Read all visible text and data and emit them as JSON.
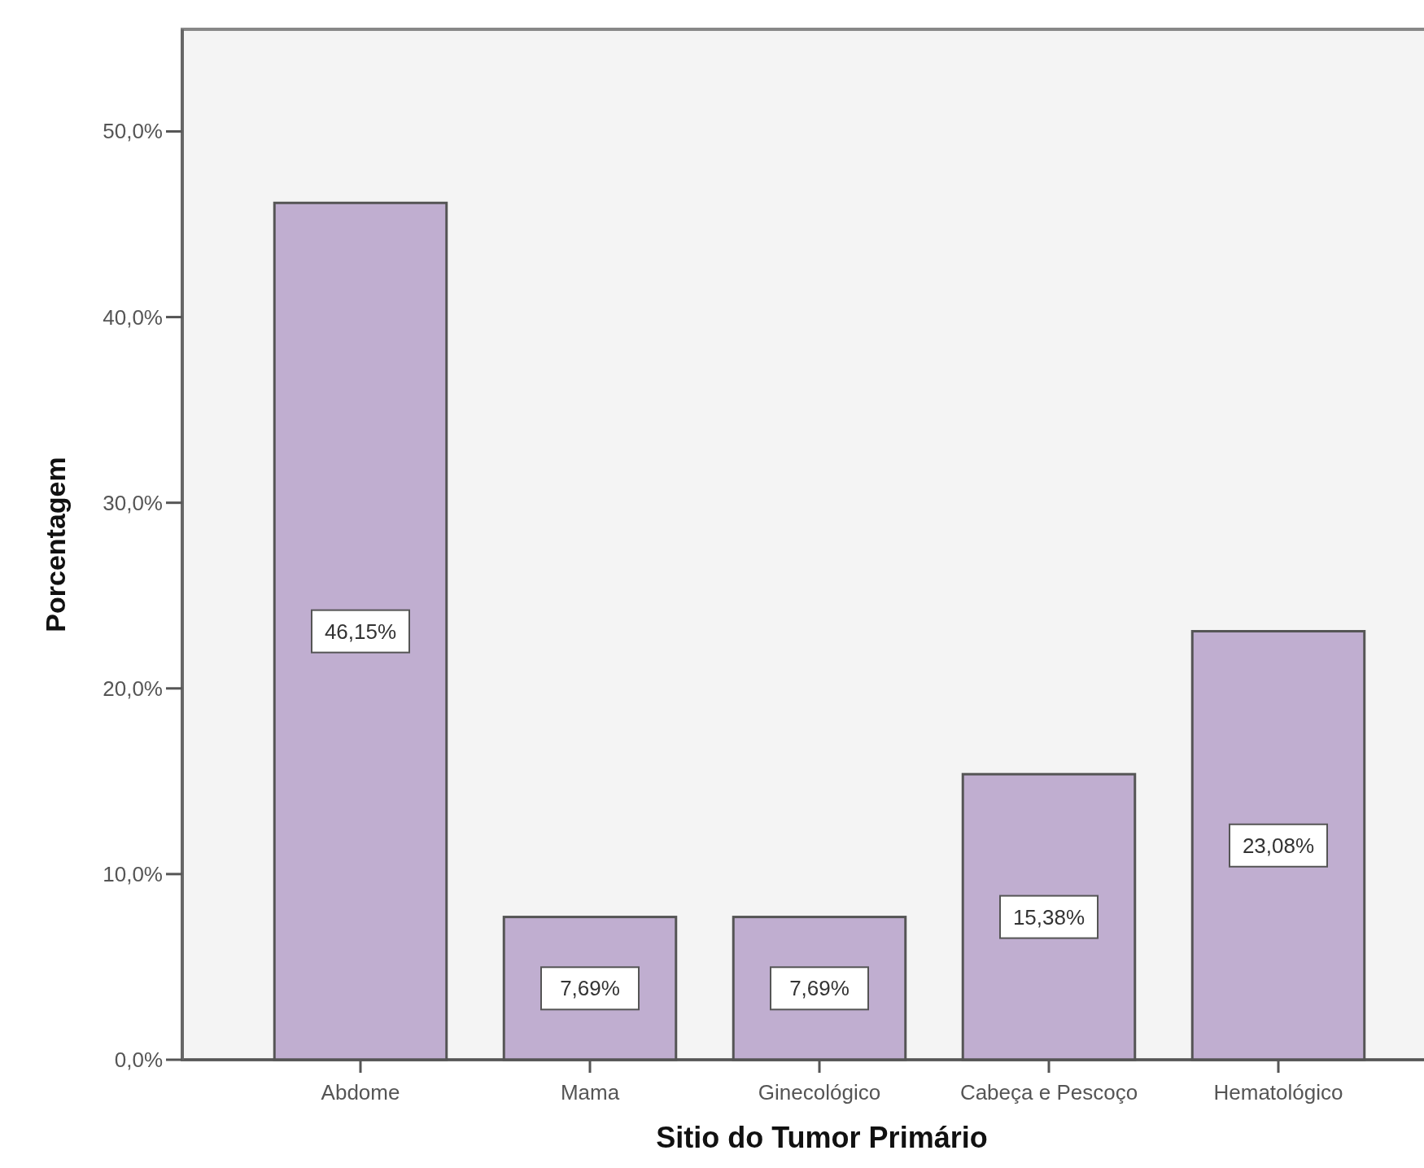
{
  "chart_data": {
    "type": "bar",
    "xlabel": "Sitio do Tumor Primário",
    "ylabel": "Porcentagem",
    "categories": [
      "Abdome",
      "Mama",
      "Ginecológico",
      "Cabeça e Pescoço",
      "Hematológico"
    ],
    "values": [
      46.15,
      7.69,
      7.69,
      15.38,
      23.08
    ],
    "value_labels": [
      "46,15%",
      "7,69%",
      "7,69%",
      "15,38%",
      "23,08%"
    ],
    "color": "#c0aed0",
    "ylim": [
      0,
      55.5
    ],
    "yticks": [
      {
        "value": 0,
        "label": "0,0%"
      },
      {
        "value": 10,
        "label": "10,0%"
      },
      {
        "value": 20,
        "label": "20,0%"
      },
      {
        "value": 30,
        "label": "30,0%"
      },
      {
        "value": 40,
        "label": "40,0%"
      },
      {
        "value": 50,
        "label": "50,0%"
      }
    ],
    "grid": false
  }
}
